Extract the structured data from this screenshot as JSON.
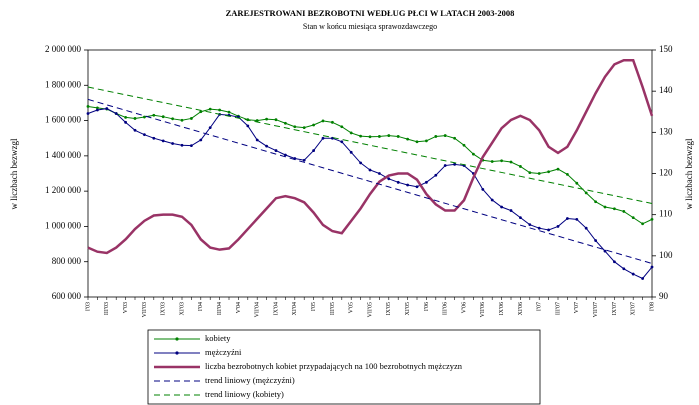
{
  "chart_data": {
    "type": "line",
    "title": "ZAREJESTROWANI BEZROBOTNI WEDŁUG PŁCI W LATACH 2003-2008",
    "subtitle": "Stan w końcu miesiąca sprawozdawczego",
    "ylabel": "w liczbach bezwzgl",
    "y2label": "w liczbach bezwzgl",
    "categories": [
      "I'03",
      null,
      "III'03",
      null,
      "V'03",
      null,
      "VII'03",
      null,
      "IX'03",
      null,
      "XI'03",
      null,
      "I'04",
      null,
      "III'04",
      null,
      "V'04",
      null,
      "VII'04",
      null,
      "IX'04",
      null,
      "XI'04",
      null,
      "I'05",
      null,
      "III'05",
      null,
      "V'05",
      null,
      "VII'05",
      null,
      "IX'05",
      null,
      "XI'05",
      null,
      "I'06",
      null,
      "III'06",
      null,
      "V'06",
      null,
      "VII'06",
      null,
      "IX'06",
      null,
      "XI'06",
      null,
      "I'07",
      null,
      "III'07",
      null,
      "V'07",
      null,
      "VII'07",
      null,
      "IX'07",
      null,
      "XI'07",
      null,
      "I'08"
    ],
    "ylim": [
      600000,
      2000000
    ],
    "yticks": [
      {
        "value": 600000,
        "label": "600 000"
      },
      {
        "value": 800000,
        "label": "800 000"
      },
      {
        "value": 1000000,
        "label": "1 000 000"
      },
      {
        "value": 1200000,
        "label": "1 200 000"
      },
      {
        "value": 1400000,
        "label": "1 400 000"
      },
      {
        "value": 1600000,
        "label": "1 600 000"
      },
      {
        "value": 1800000,
        "label": "1 800 000"
      },
      {
        "value": 2000000,
        "label": "2 000 000"
      }
    ],
    "y2lim": [
      90,
      150
    ],
    "y2ticks": [
      90,
      100,
      110,
      120,
      130,
      140,
      150
    ],
    "grid": false,
    "legend": "bottom",
    "series": [
      {
        "name": "kobiety",
        "color": "#008000",
        "marker": true,
        "values": [
          1680000,
          1672000,
          1665000,
          1640000,
          1618000,
          1612000,
          1620000,
          1630000,
          1622000,
          1610000,
          1602000,
          1612000,
          1650000,
          1665000,
          1660000,
          1648000,
          1625000,
          1605000,
          1600000,
          1608000,
          1605000,
          1585000,
          1565000,
          1560000,
          1575000,
          1598000,
          1590000,
          1565000,
          1530000,
          1512000,
          1508000,
          1510000,
          1515000,
          1510000,
          1495000,
          1480000,
          1485000,
          1510000,
          1515000,
          1500000,
          1460000,
          1410000,
          1375000,
          1368000,
          1372000,
          1365000,
          1340000,
          1305000,
          1300000,
          1310000,
          1325000,
          1295000,
          1245000,
          1190000,
          1140000,
          1110000,
          1100000,
          1085000,
          1050000,
          1015000,
          1040000
        ]
      },
      {
        "name": "mężczyźni",
        "color": "#000080",
        "marker": true,
        "values": [
          1640000,
          1660000,
          1668000,
          1640000,
          1590000,
          1545000,
          1520000,
          1500000,
          1485000,
          1470000,
          1460000,
          1458000,
          1490000,
          1560000,
          1635000,
          1630000,
          1620000,
          1570000,
          1490000,
          1455000,
          1430000,
          1405000,
          1385000,
          1375000,
          1430000,
          1500000,
          1500000,
          1480000,
          1420000,
          1360000,
          1320000,
          1300000,
          1270000,
          1250000,
          1235000,
          1225000,
          1250000,
          1290000,
          1345000,
          1352000,
          1345000,
          1300000,
          1210000,
          1150000,
          1110000,
          1090000,
          1050000,
          1010000,
          990000,
          980000,
          1000000,
          1045000,
          1040000,
          990000,
          920000,
          860000,
          800000,
          760000,
          730000,
          705000,
          770000
        ]
      },
      {
        "name": "liczba bezrobotnych kobiet przypadających na 100 bezrobotnych mężczyzn",
        "color": "#993366",
        "axis": "y2",
        "width": 2.5,
        "values": [
          102,
          101,
          100.7,
          102,
          104,
          106.5,
          108.5,
          109.8,
          110,
          110,
          109.5,
          107.5,
          104,
          102,
          101.5,
          101.8,
          104,
          106.5,
          109,
          111.5,
          114,
          114.5,
          114,
          113,
          110.5,
          107.5,
          106,
          105.5,
          108.5,
          111.5,
          115,
          118,
          119.5,
          120,
          120,
          118.5,
          115,
          112.5,
          111,
          111,
          113.5,
          119,
          124,
          127.5,
          131,
          133,
          134,
          133,
          130.5,
          126.5,
          125,
          126.5,
          130.5,
          135,
          139.5,
          143.5,
          146.5,
          147.5,
          147.5,
          141,
          134
        ]
      },
      {
        "name": "trend liniowy (mężczyźni)",
        "color": "#000080",
        "dashed": true,
        "values": [
          1720000,
          1704500,
          1689000,
          1673500,
          1658000,
          1642500,
          1627000,
          1611500,
          1596000,
          1580500,
          1565000,
          1549500,
          1534000,
          1518500,
          1503000,
          1487500,
          1472000,
          1456500,
          1441000,
          1425500,
          1410000,
          1394500,
          1379000,
          1363500,
          1348000,
          1332500,
          1317000,
          1301500,
          1286000,
          1270500,
          1255000,
          1239500,
          1224000,
          1208500,
          1193000,
          1177500,
          1162000,
          1146500,
          1131000,
          1115500,
          1100000,
          1084500,
          1069000,
          1053500,
          1038000,
          1022500,
          1007000,
          991500,
          976000,
          960500,
          945000,
          929500,
          914000,
          898500,
          883000,
          867500,
          852000,
          836500,
          821000,
          805500,
          790000
        ]
      },
      {
        "name": "trend liniowy (kobiety)",
        "color": "#008000",
        "dashed": true,
        "values": [
          1790000,
          1779000,
          1768000,
          1757000,
          1746000,
          1735000,
          1724000,
          1713000,
          1702000,
          1691000,
          1680000,
          1669000,
          1658000,
          1647000,
          1636000,
          1625000,
          1614000,
          1603000,
          1592000,
          1581000,
          1570000,
          1559000,
          1548000,
          1537000,
          1526000,
          1515000,
          1504000,
          1493000,
          1482000,
          1471000,
          1460000,
          1449000,
          1438000,
          1427000,
          1416000,
          1405000,
          1394000,
          1383000,
          1372000,
          1361000,
          1350000,
          1339000,
          1328000,
          1317000,
          1306000,
          1295000,
          1284000,
          1273000,
          1262000,
          1251000,
          1240000,
          1229000,
          1218000,
          1207000,
          1196000,
          1185000,
          1174000,
          1163000,
          1152000,
          1141000,
          1130000
        ]
      }
    ]
  }
}
